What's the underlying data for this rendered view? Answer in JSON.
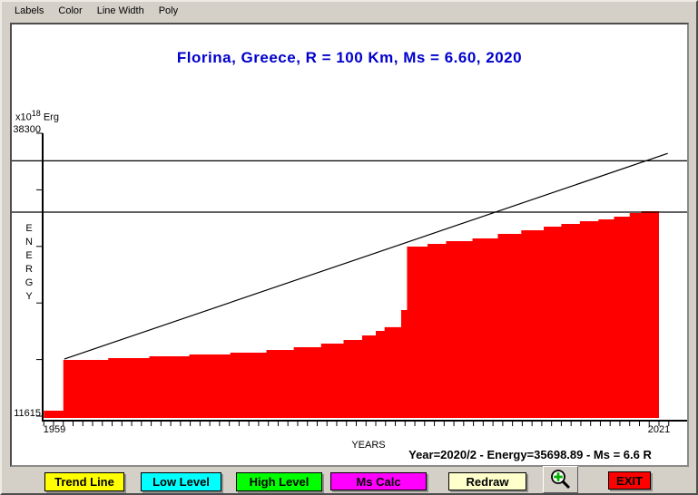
{
  "menu": {
    "items": [
      {
        "label": "Labels"
      },
      {
        "label": "Color"
      },
      {
        "label": "Line Width"
      },
      {
        "label": "Poly"
      }
    ]
  },
  "chart": {
    "title": "Florina, Greece, R = 100 Km, Ms = 6.60, 2020",
    "title_color": "#0000cc",
    "yaxis": {
      "unit_prefix": "x10",
      "unit_exponent": "18",
      "unit_suffix": " Erg",
      "max_label": "38300",
      "min_label": "11615",
      "vertical_label": "E\nN\nE\nR\nG\nY"
    },
    "xaxis": {
      "first_label": "1959",
      "last_label": "2021",
      "label": "YEARS"
    },
    "status_text": "Year=2020/2 - Energy=35698.89 - Ms = 6.6 R"
  },
  "chart_data": {
    "type": "area",
    "title": "Florina, Greece, R = 100 Km, Ms = 6.60, 2020",
    "xlabel": "YEARS",
    "ylabel": "ENERGY",
    "y_unit": "x10^18 Erg",
    "ylim": [
      11615,
      38300
    ],
    "xlim": [
      1958,
      2022
    ],
    "x_tick_from": 1958,
    "x_tick_to": 2022,
    "y_tick_count": 6,
    "area_color": "#ff0000",
    "line_color": "#000000",
    "steps": [
      {
        "year": 1958.0,
        "value": 12130
      },
      {
        "year": 1960.0,
        "value": 16920
      },
      {
        "year": 1964.6,
        "value": 17090
      },
      {
        "year": 1968.8,
        "value": 17260
      },
      {
        "year": 1972.9,
        "value": 17430
      },
      {
        "year": 1977.1,
        "value": 17600
      },
      {
        "year": 1980.8,
        "value": 17860
      },
      {
        "year": 1983.6,
        "value": 18115
      },
      {
        "year": 1986.4,
        "value": 18460
      },
      {
        "year": 1988.7,
        "value": 18800
      },
      {
        "year": 1990.6,
        "value": 19225
      },
      {
        "year": 1992.0,
        "value": 19655
      },
      {
        "year": 1992.9,
        "value": 20005
      },
      {
        "year": 1994.6,
        "value": 21625
      },
      {
        "year": 1995.2,
        "value": 27610
      },
      {
        "year": 1997.3,
        "value": 27865
      },
      {
        "year": 1999.2,
        "value": 28120
      },
      {
        "year": 2001.9,
        "value": 28380
      },
      {
        "year": 2004.5,
        "value": 28810
      },
      {
        "year": 2006.9,
        "value": 29150
      },
      {
        "year": 2009.2,
        "value": 29490
      },
      {
        "year": 2011.0,
        "value": 29745
      },
      {
        "year": 2012.9,
        "value": 30000
      },
      {
        "year": 2014.8,
        "value": 30175
      },
      {
        "year": 2016.4,
        "value": 30430
      },
      {
        "year": 2018.0,
        "value": 30770
      },
      {
        "year": 2019.2,
        "value": 30940
      },
      {
        "year": 2021.0,
        "value": 30940
      }
    ],
    "trend_line": {
      "from": {
        "year": 1960.1,
        "value": 17000
      },
      "to": {
        "year": 2021.9,
        "value": 36400
      }
    },
    "levels": {
      "high_level": 35700,
      "low_level": 30860
    },
    "legend": "none",
    "grid": "off"
  },
  "buttons": {
    "trend_line": {
      "label": "Trend Line",
      "color": "#ffff00"
    },
    "low_level": {
      "label": "Low Level",
      "color": "#00ffff"
    },
    "high_level": {
      "label": "High Level",
      "color": "#00ff00"
    },
    "ms_calc": {
      "label": "Ms Calc",
      "color": "#ff00ff"
    },
    "redraw": {
      "label": "Redraw",
      "color": "#ffffcc"
    },
    "zoom": {
      "icon": "magnifier-plus-icon"
    },
    "exit": {
      "label": "EXIT",
      "color": "#ff0000"
    }
  }
}
